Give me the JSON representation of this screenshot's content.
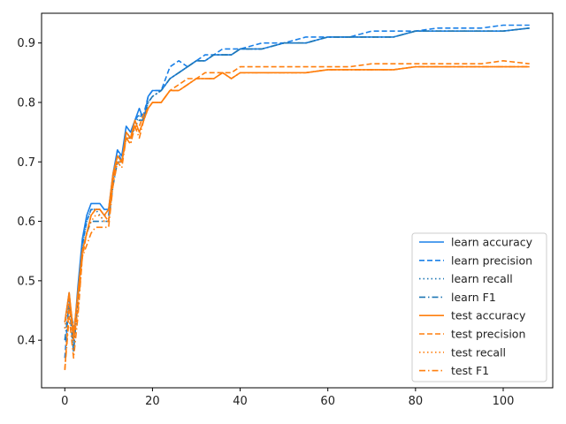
{
  "chart_data": {
    "type": "line",
    "title": "",
    "xlabel": "",
    "ylabel": "",
    "xlim": [
      -5.3,
      111.3
    ],
    "ylim": [
      0.32,
      0.95
    ],
    "xticks": [
      0,
      20,
      40,
      60,
      80,
      100
    ],
    "yticks": [
      0.4,
      0.5,
      0.6,
      0.7,
      0.8,
      0.9
    ],
    "grid": false,
    "legend_position": "bottom-right",
    "colors": {
      "learn": "#1f77b4",
      "learn_bright": "#1a80e8",
      "test": "#ff7f0e"
    },
    "series": [
      {
        "name": "learn accuracy",
        "color": "#1a80e8",
        "dash": "solid",
        "x": [
          0,
          1,
          2,
          3,
          4,
          5,
          6,
          7,
          8,
          9,
          10,
          11,
          12,
          13,
          14,
          15,
          16,
          17,
          18,
          19,
          20,
          22,
          24,
          26,
          28,
          30,
          32,
          34,
          36,
          38,
          40,
          45,
          50,
          55,
          60,
          65,
          70,
          75,
          80,
          85,
          90,
          95,
          100,
          106
        ],
        "y": [
          0.43,
          0.48,
          0.4,
          0.49,
          0.57,
          0.61,
          0.63,
          0.63,
          0.63,
          0.62,
          0.62,
          0.68,
          0.72,
          0.71,
          0.76,
          0.75,
          0.77,
          0.79,
          0.77,
          0.81,
          0.82,
          0.82,
          0.84,
          0.85,
          0.86,
          0.87,
          0.87,
          0.88,
          0.88,
          0.88,
          0.89,
          0.89,
          0.9,
          0.9,
          0.91,
          0.91,
          0.91,
          0.91,
          0.92,
          0.92,
          0.92,
          0.92,
          0.92,
          0.925
        ]
      },
      {
        "name": "learn precision",
        "color": "#1a80e8",
        "dash": "dashed",
        "x": [
          0,
          1,
          2,
          3,
          4,
          5,
          6,
          7,
          8,
          9,
          10,
          11,
          12,
          13,
          14,
          15,
          16,
          17,
          18,
          19,
          20,
          22,
          24,
          26,
          28,
          30,
          32,
          34,
          36,
          38,
          40,
          45,
          50,
          55,
          60,
          65,
          70,
          75,
          80,
          85,
          90,
          95,
          100,
          106
        ],
        "y": [
          0.37,
          0.47,
          0.42,
          0.46,
          0.56,
          0.6,
          0.62,
          0.62,
          0.62,
          0.61,
          0.61,
          0.67,
          0.72,
          0.7,
          0.75,
          0.74,
          0.77,
          0.78,
          0.78,
          0.81,
          0.82,
          0.82,
          0.86,
          0.87,
          0.86,
          0.87,
          0.88,
          0.88,
          0.89,
          0.89,
          0.89,
          0.9,
          0.9,
          0.91,
          0.91,
          0.91,
          0.92,
          0.92,
          0.92,
          0.925,
          0.925,
          0.925,
          0.93,
          0.93
        ]
      },
      {
        "name": "learn recall",
        "color": "#1f77b4",
        "dash": "dotted",
        "x": [
          0,
          1,
          2,
          3,
          4,
          5,
          6,
          7,
          8,
          9,
          10,
          11,
          12,
          13,
          14,
          15,
          16,
          17,
          18,
          19,
          20,
          22,
          24,
          26,
          28,
          30,
          32,
          34,
          36,
          38,
          40,
          45,
          50,
          55,
          60,
          65,
          70,
          75,
          80,
          85,
          90,
          95,
          100,
          106
        ],
        "y": [
          0.42,
          0.47,
          0.39,
          0.48,
          0.56,
          0.6,
          0.62,
          0.62,
          0.61,
          0.6,
          0.6,
          0.67,
          0.71,
          0.7,
          0.75,
          0.74,
          0.76,
          0.78,
          0.77,
          0.8,
          0.81,
          0.82,
          0.84,
          0.85,
          0.86,
          0.87,
          0.87,
          0.88,
          0.88,
          0.88,
          0.89,
          0.89,
          0.9,
          0.9,
          0.91,
          0.91,
          0.91,
          0.91,
          0.92,
          0.92,
          0.92,
          0.92,
          0.92,
          0.925
        ]
      },
      {
        "name": "learn F1",
        "color": "#1f77b4",
        "dash": "dashdot",
        "x": [
          0,
          1,
          2,
          3,
          4,
          5,
          6,
          7,
          8,
          9,
          10,
          11,
          12,
          13,
          14,
          15,
          16,
          17,
          18,
          19,
          20,
          22,
          24,
          26,
          28,
          30,
          32,
          34,
          36,
          38,
          40,
          45,
          50,
          55,
          60,
          65,
          70,
          75,
          80,
          85,
          90,
          95,
          100,
          106
        ],
        "y": [
          0.4,
          0.46,
          0.38,
          0.47,
          0.55,
          0.58,
          0.6,
          0.6,
          0.6,
          0.6,
          0.6,
          0.66,
          0.7,
          0.7,
          0.74,
          0.74,
          0.76,
          0.77,
          0.77,
          0.8,
          0.81,
          0.82,
          0.84,
          0.85,
          0.86,
          0.87,
          0.87,
          0.88,
          0.88,
          0.88,
          0.89,
          0.89,
          0.9,
          0.9,
          0.91,
          0.91,
          0.91,
          0.91,
          0.92,
          0.92,
          0.92,
          0.92,
          0.92,
          0.925
        ]
      },
      {
        "name": "test accuracy",
        "color": "#ff7f0e",
        "dash": "solid",
        "x": [
          0,
          1,
          2,
          3,
          4,
          5,
          6,
          7,
          8,
          9,
          10,
          11,
          12,
          13,
          14,
          15,
          16,
          17,
          18,
          19,
          20,
          22,
          24,
          26,
          28,
          30,
          32,
          34,
          36,
          38,
          40,
          45,
          50,
          55,
          60,
          65,
          70,
          75,
          80,
          85,
          90,
          95,
          100,
          106
        ],
        "y": [
          0.43,
          0.48,
          0.41,
          0.48,
          0.55,
          0.58,
          0.61,
          0.62,
          0.62,
          0.61,
          0.62,
          0.68,
          0.71,
          0.7,
          0.75,
          0.74,
          0.77,
          0.75,
          0.77,
          0.79,
          0.8,
          0.8,
          0.82,
          0.82,
          0.83,
          0.84,
          0.84,
          0.84,
          0.85,
          0.84,
          0.85,
          0.85,
          0.85,
          0.85,
          0.855,
          0.855,
          0.855,
          0.855,
          0.86,
          0.86,
          0.86,
          0.86,
          0.86,
          0.86
        ]
      },
      {
        "name": "test precision",
        "color": "#ff7f0e",
        "dash": "dashed",
        "x": [
          0,
          1,
          2,
          3,
          4,
          5,
          6,
          7,
          8,
          9,
          10,
          11,
          12,
          13,
          14,
          15,
          16,
          17,
          18,
          19,
          20,
          22,
          24,
          26,
          28,
          30,
          32,
          34,
          36,
          38,
          40,
          45,
          50,
          55,
          60,
          65,
          70,
          75,
          80,
          85,
          90,
          95,
          100,
          106
        ],
        "y": [
          0.35,
          0.46,
          0.4,
          0.45,
          0.54,
          0.58,
          0.61,
          0.62,
          0.62,
          0.61,
          0.6,
          0.67,
          0.71,
          0.7,
          0.74,
          0.74,
          0.76,
          0.76,
          0.78,
          0.79,
          0.8,
          0.8,
          0.82,
          0.83,
          0.84,
          0.84,
          0.85,
          0.85,
          0.85,
          0.85,
          0.86,
          0.86,
          0.86,
          0.86,
          0.86,
          0.86,
          0.865,
          0.865,
          0.865,
          0.865,
          0.865,
          0.865,
          0.87,
          0.865
        ]
      },
      {
        "name": "test recall",
        "color": "#ff7f0e",
        "dash": "dotted",
        "x": [
          0,
          1,
          2,
          3,
          4,
          5,
          6,
          7,
          8,
          9,
          10,
          11,
          12,
          13,
          14,
          15,
          16,
          17,
          18,
          19,
          20,
          22,
          24,
          26,
          28,
          30,
          32,
          34,
          36,
          38,
          40,
          45,
          50,
          55,
          60,
          65,
          70,
          75,
          80,
          85,
          90,
          95,
          100,
          106
        ],
        "y": [
          0.42,
          0.47,
          0.4,
          0.47,
          0.55,
          0.58,
          0.6,
          0.61,
          0.61,
          0.6,
          0.6,
          0.67,
          0.7,
          0.7,
          0.74,
          0.73,
          0.76,
          0.75,
          0.77,
          0.79,
          0.8,
          0.8,
          0.82,
          0.82,
          0.83,
          0.84,
          0.84,
          0.84,
          0.85,
          0.84,
          0.85,
          0.85,
          0.85,
          0.85,
          0.855,
          0.855,
          0.855,
          0.855,
          0.86,
          0.86,
          0.86,
          0.86,
          0.86,
          0.86
        ]
      },
      {
        "name": "test F1",
        "color": "#ff7f0e",
        "dash": "dashdot",
        "x": [
          0,
          1,
          2,
          3,
          4,
          5,
          6,
          7,
          8,
          9,
          10,
          11,
          12,
          13,
          14,
          15,
          16,
          17,
          18,
          19,
          20,
          22,
          24,
          26,
          28,
          30,
          32,
          34,
          36,
          38,
          40,
          45,
          50,
          55,
          60,
          65,
          70,
          75,
          80,
          85,
          90,
          95,
          100,
          106
        ],
        "y": [
          0.35,
          0.44,
          0.37,
          0.44,
          0.54,
          0.56,
          0.58,
          0.59,
          0.59,
          0.59,
          0.59,
          0.66,
          0.7,
          0.69,
          0.74,
          0.73,
          0.76,
          0.74,
          0.77,
          0.79,
          0.8,
          0.8,
          0.82,
          0.82,
          0.83,
          0.84,
          0.84,
          0.84,
          0.85,
          0.84,
          0.85,
          0.85,
          0.85,
          0.85,
          0.855,
          0.855,
          0.855,
          0.855,
          0.86,
          0.86,
          0.86,
          0.86,
          0.86,
          0.86
        ]
      }
    ]
  }
}
